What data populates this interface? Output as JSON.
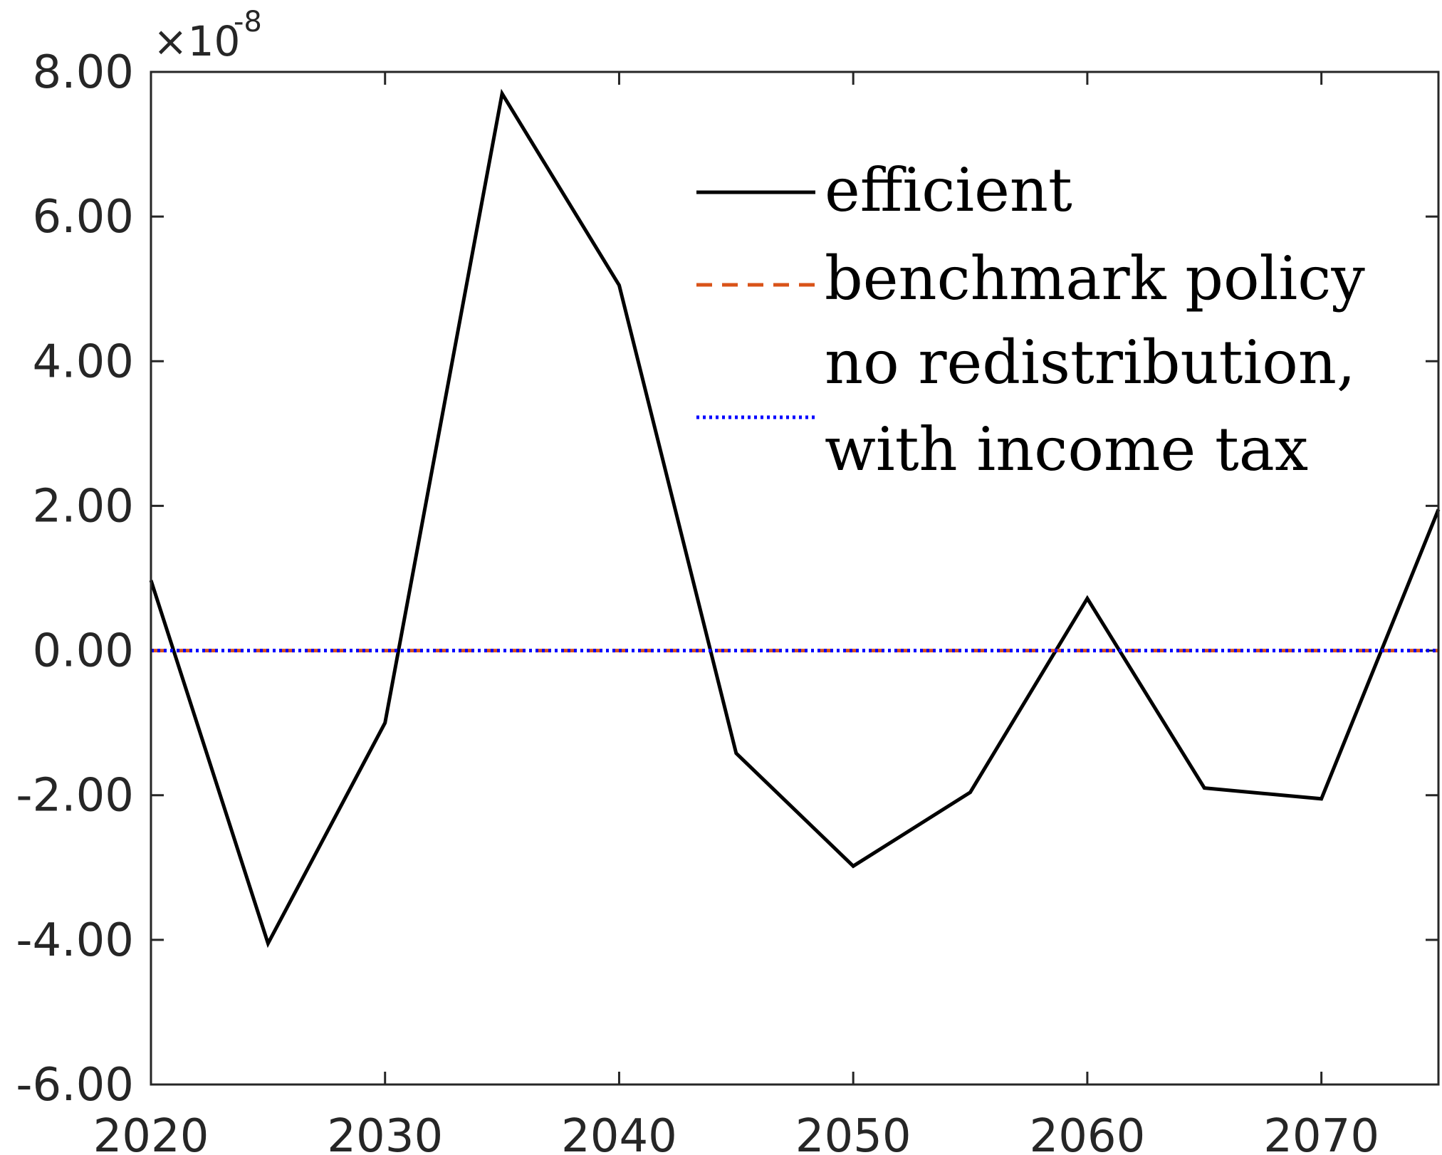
{
  "chart_data": {
    "type": "line",
    "title": "",
    "xlabel": "",
    "ylabel": "",
    "y_multiplier": {
      "base": "×10",
      "exponent": "-8"
    },
    "x": [
      2020,
      2025,
      2030,
      2035,
      2040,
      2045,
      2050,
      2055,
      2060,
      2065,
      2070,
      2075
    ],
    "xlim": [
      2020,
      2075
    ],
    "ylim": [
      -6,
      8
    ],
    "x_ticks": [
      {
        "value": 2020,
        "label": "2020"
      },
      {
        "value": 2030,
        "label": "2030"
      },
      {
        "value": 2040,
        "label": "2040"
      },
      {
        "value": 2050,
        "label": "2050"
      },
      {
        "value": 2060,
        "label": "2060"
      },
      {
        "value": 2070,
        "label": "2070"
      }
    ],
    "y_ticks": [
      {
        "value": 8,
        "label": "8.00"
      },
      {
        "value": 6,
        "label": "6.00"
      },
      {
        "value": 4,
        "label": "4.00"
      },
      {
        "value": 2,
        "label": "2.00"
      },
      {
        "value": 0,
        "label": "0.00"
      },
      {
        "value": -2,
        "label": "-2.00"
      },
      {
        "value": -4,
        "label": "-4.00"
      },
      {
        "value": -6,
        "label": "-6.00"
      }
    ],
    "grid": false,
    "legend_position": "top-right",
    "series": [
      {
        "name": "efficient",
        "color": "#000000",
        "style": "solid",
        "values": [
          0.97,
          -4.05,
          -1.0,
          7.7,
          5.05,
          -1.42,
          -2.98,
          -1.96,
          0.72,
          -1.9,
          -2.05,
          1.95
        ]
      },
      {
        "name": "benchmark policy",
        "color": "#D95319",
        "style": "dashed",
        "values": [
          0,
          0,
          0,
          0,
          0,
          0,
          0,
          0,
          0,
          0,
          0,
          0
        ]
      },
      {
        "name": "no redistribution, with income tax",
        "label_lines": [
          "no redistribution,",
          "with income tax"
        ],
        "color": "#0000FF",
        "style": "dotted",
        "values": [
          0,
          0,
          0,
          0,
          0,
          0,
          0,
          0,
          0,
          0,
          0,
          0
        ]
      }
    ]
  }
}
